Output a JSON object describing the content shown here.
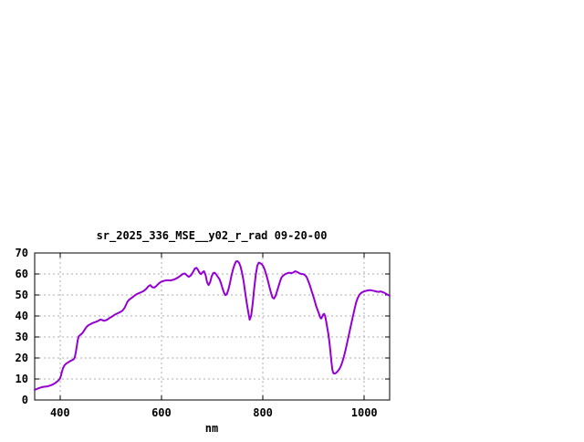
{
  "page": {
    "background_color": "#ffffff"
  },
  "chart_data": {
    "type": "line",
    "title": "sr_2025_336_MSE__y02_r_rad 09-20-00",
    "xlabel": "nm",
    "ylabel": "",
    "xlim": [
      350,
      1050
    ],
    "ylim": [
      0,
      70
    ],
    "xticks": [
      400,
      600,
      800,
      1000
    ],
    "yticks": [
      0,
      10,
      20,
      30,
      40,
      50,
      60,
      70
    ],
    "grid": "on",
    "grid_style": "dashed",
    "legend": "none",
    "colors": {
      "line": "#9400d3",
      "grid": "#adadad",
      "axis": "#000000",
      "text": "#000000",
      "background": "#ffffff"
    },
    "series": [
      {
        "name": "sr_2025_336_MSE__y02_r_rad",
        "color": "#9400d3",
        "points": [
          [
            350,
            4.8
          ],
          [
            354,
            5.2
          ],
          [
            358,
            5.6
          ],
          [
            363,
            6.0
          ],
          [
            368,
            6.3
          ],
          [
            373,
            6.4
          ],
          [
            378,
            6.7
          ],
          [
            383,
            7.1
          ],
          [
            388,
            7.7
          ],
          [
            392,
            8.3
          ],
          [
            395,
            8.9
          ],
          [
            398,
            9.6
          ],
          [
            400,
            10.2
          ],
          [
            402,
            11.8
          ],
          [
            404,
            13.6
          ],
          [
            406,
            15.2
          ],
          [
            409,
            16.6
          ],
          [
            412,
            17.3
          ],
          [
            416,
            17.9
          ],
          [
            420,
            18.5
          ],
          [
            424,
            19.0
          ],
          [
            427,
            19.4
          ],
          [
            429,
            20.2
          ],
          [
            431,
            22.5
          ],
          [
            433,
            25.5
          ],
          [
            435,
            28.5
          ],
          [
            437,
            30.3
          ],
          [
            440,
            31.0
          ],
          [
            444,
            31.8
          ],
          [
            448,
            33.3
          ],
          [
            452,
            34.7
          ],
          [
            456,
            35.6
          ],
          [
            460,
            36.1
          ],
          [
            464,
            36.6
          ],
          [
            468,
            37.0
          ],
          [
            472,
            37.3
          ],
          [
            476,
            37.8
          ],
          [
            480,
            38.3
          ],
          [
            483,
            38.1
          ],
          [
            487,
            37.7
          ],
          [
            490,
            37.9
          ],
          [
            494,
            38.4
          ],
          [
            498,
            39.1
          ],
          [
            503,
            39.8
          ],
          [
            508,
            40.6
          ],
          [
            513,
            41.2
          ],
          [
            518,
            41.8
          ],
          [
            523,
            42.5
          ],
          [
            527,
            43.8
          ],
          [
            530,
            45.2
          ],
          [
            533,
            46.8
          ],
          [
            536,
            47.7
          ],
          [
            540,
            48.4
          ],
          [
            545,
            49.3
          ],
          [
            550,
            50.2
          ],
          [
            555,
            50.8
          ],
          [
            560,
            51.3
          ],
          [
            565,
            51.9
          ],
          [
            570,
            52.9
          ],
          [
            574,
            54.1
          ],
          [
            578,
            54.7
          ],
          [
            582,
            53.7
          ],
          [
            586,
            53.5
          ],
          [
            590,
            54.3
          ],
          [
            594,
            55.3
          ],
          [
            598,
            56.1
          ],
          [
            603,
            56.6
          ],
          [
            608,
            56.9
          ],
          [
            613,
            57.0
          ],
          [
            618,
            56.9
          ],
          [
            623,
            57.2
          ],
          [
            628,
            57.7
          ],
          [
            633,
            58.4
          ],
          [
            638,
            59.2
          ],
          [
            642,
            60.0
          ],
          [
            646,
            60.2
          ],
          [
            650,
            59.4
          ],
          [
            654,
            58.6
          ],
          [
            658,
            59.3
          ],
          [
            662,
            60.8
          ],
          [
            666,
            62.6
          ],
          [
            669,
            62.9
          ],
          [
            672,
            62.0
          ],
          [
            675,
            60.6
          ],
          [
            678,
            59.9
          ],
          [
            681,
            60.8
          ],
          [
            684,
            61.3
          ],
          [
            687,
            59.5
          ],
          [
            690,
            56.1
          ],
          [
            693,
            54.7
          ],
          [
            696,
            56.1
          ],
          [
            699,
            58.8
          ],
          [
            702,
            60.4
          ],
          [
            705,
            60.6
          ],
          [
            708,
            59.8
          ],
          [
            711,
            58.7
          ],
          [
            714,
            57.7
          ],
          [
            717,
            56.0
          ],
          [
            720,
            53.5
          ],
          [
            723,
            51.3
          ],
          [
            726,
            49.9
          ],
          [
            729,
            50.4
          ],
          [
            732,
            52.6
          ],
          [
            735,
            55.6
          ],
          [
            738,
            59.1
          ],
          [
            741,
            62.1
          ],
          [
            744,
            64.4
          ],
          [
            747,
            65.9
          ],
          [
            750,
            66.1
          ],
          [
            753,
            65.3
          ],
          [
            756,
            63.5
          ],
          [
            759,
            60.5
          ],
          [
            762,
            56.5
          ],
          [
            765,
            51.5
          ],
          [
            768,
            46.5
          ],
          [
            771,
            42.0
          ],
          [
            774,
            38.2
          ],
          [
            777,
            40.2
          ],
          [
            780,
            46.2
          ],
          [
            783,
            53.2
          ],
          [
            786,
            59.6
          ],
          [
            789,
            64.0
          ],
          [
            792,
            65.4
          ],
          [
            795,
            65.1
          ],
          [
            798,
            64.6
          ],
          [
            801,
            63.6
          ],
          [
            804,
            61.8
          ],
          [
            807,
            59.4
          ],
          [
            810,
            56.8
          ],
          [
            813,
            53.8
          ],
          [
            816,
            51.0
          ],
          [
            819,
            48.8
          ],
          [
            822,
            48.3
          ],
          [
            825,
            49.6
          ],
          [
            828,
            51.8
          ],
          [
            831,
            54.2
          ],
          [
            834,
            56.6
          ],
          [
            837,
            58.4
          ],
          [
            840,
            59.2
          ],
          [
            844,
            59.9
          ],
          [
            848,
            60.3
          ],
          [
            852,
            60.6
          ],
          [
            856,
            60.4
          ],
          [
            860,
            60.7
          ],
          [
            864,
            61.3
          ],
          [
            868,
            60.9
          ],
          [
            872,
            60.3
          ],
          [
            876,
            60.0
          ],
          [
            880,
            59.9
          ],
          [
            884,
            59.2
          ],
          [
            887,
            58.2
          ],
          [
            890,
            56.3
          ],
          [
            893,
            54.3
          ],
          [
            896,
            52.0
          ],
          [
            899,
            49.8
          ],
          [
            902,
            47.3
          ],
          [
            905,
            44.8
          ],
          [
            908,
            42.8
          ],
          [
            911,
            40.8
          ],
          [
            913,
            39.3
          ],
          [
            915,
            38.8
          ],
          [
            917,
            39.6
          ],
          [
            919,
            40.7
          ],
          [
            921,
            41.0
          ],
          [
            923,
            39.8
          ],
          [
            925,
            37.3
          ],
          [
            927,
            34.5
          ],
          [
            929,
            31.5
          ],
          [
            931,
            28.0
          ],
          [
            933,
            23.5
          ],
          [
            935,
            18.5
          ],
          [
            937,
            14.5
          ],
          [
            939,
            12.8
          ],
          [
            942,
            12.6
          ],
          [
            945,
            13.0
          ],
          [
            948,
            13.8
          ],
          [
            951,
            14.8
          ],
          [
            954,
            16.3
          ],
          [
            957,
            18.3
          ],
          [
            960,
            20.8
          ],
          [
            963,
            23.8
          ],
          [
            966,
            27.0
          ],
          [
            969,
            30.3
          ],
          [
            972,
            33.8
          ],
          [
            975,
            37.0
          ],
          [
            978,
            40.3
          ],
          [
            981,
            43.5
          ],
          [
            984,
            46.5
          ],
          [
            987,
            48.5
          ],
          [
            990,
            50.0
          ],
          [
            993,
            50.8
          ],
          [
            996,
            51.3
          ],
          [
            1000,
            51.7
          ],
          [
            1004,
            52.0
          ],
          [
            1008,
            52.2
          ],
          [
            1012,
            52.3
          ],
          [
            1016,
            52.1
          ],
          [
            1020,
            51.9
          ],
          [
            1024,
            51.6
          ],
          [
            1028,
            51.5
          ],
          [
            1032,
            51.7
          ],
          [
            1036,
            51.4
          ],
          [
            1040,
            51.0
          ],
          [
            1044,
            50.4
          ],
          [
            1047,
            50.0
          ],
          [
            1050,
            49.6
          ]
        ]
      }
    ]
  }
}
